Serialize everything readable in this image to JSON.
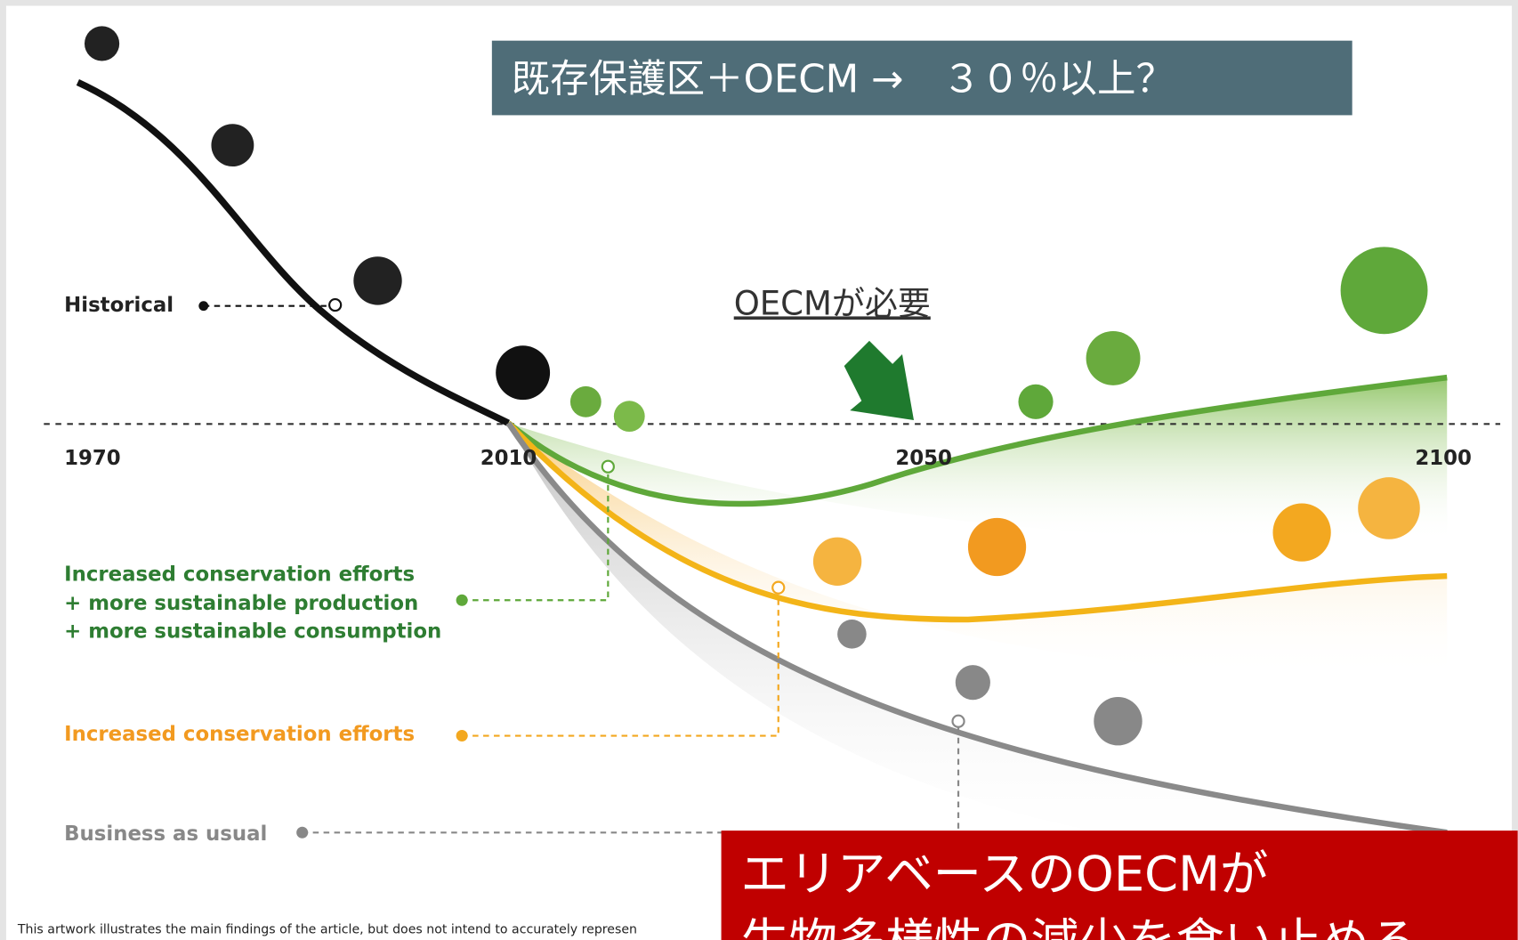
{
  "banner": {
    "text": "既存保護区＋OECM →　３０％以上？"
  },
  "callout": {
    "text": "OECMが必要"
  },
  "timeline": {
    "start": "1970",
    "now": "2010",
    "mid": "2050",
    "end": "2100"
  },
  "scenarios": {
    "historical": "Historical",
    "green": [
      "Increased conservation efforts",
      "+ more sustainable production",
      "+ more sustainable consumption"
    ],
    "orange": "Increased conservation efforts",
    "gray": "Business as usual"
  },
  "footnote": "This artwork illustrates the main findings of the article, but does not intend to accurately represen",
  "conclusion": [
    "エリアベースのOECMが",
    "生物多様性の減少を食い止める"
  ]
}
